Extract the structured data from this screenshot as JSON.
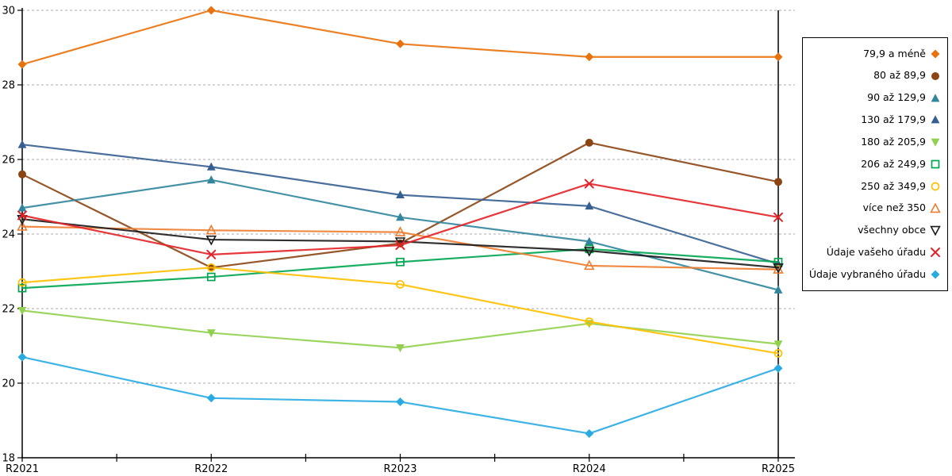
{
  "chart_data": {
    "type": "line",
    "title": "",
    "xlabel": "",
    "ylabel": "",
    "x_categories": [
      "R2021",
      "R2022",
      "R2023",
      "R2024",
      "R2025"
    ],
    "ylim": [
      18,
      30
    ],
    "yticks": [
      18,
      20,
      22,
      24,
      26,
      28,
      30
    ],
    "grid": "horizontal-dashed",
    "legend_position": "right-outside",
    "series": [
      {
        "name": "79,9 a méně",
        "marker": "diamond-filled",
        "color": "#E8730E",
        "values": [
          28.55,
          30.0,
          29.1,
          28.75,
          28.75
        ]
      },
      {
        "name": "80 až 89,9",
        "marker": "circle-filled",
        "color": "#8B4513",
        "values": [
          25.6,
          23.1,
          23.75,
          26.45,
          25.4
        ]
      },
      {
        "name": "90 až 129,9",
        "marker": "triangle-up-filled",
        "color": "#31859C",
        "values": [
          24.7,
          25.45,
          24.45,
          23.8,
          22.5
        ]
      },
      {
        "name": "130 až 179,9",
        "marker": "triangle-up-filled",
        "color": "#365F91",
        "values": [
          26.4,
          25.8,
          25.05,
          24.75,
          23.2
        ]
      },
      {
        "name": "180 až 205,9",
        "marker": "triangle-down-filled",
        "color": "#92D050",
        "values": [
          21.95,
          21.35,
          20.95,
          21.6,
          21.05
        ]
      },
      {
        "name": "206 až 249,9",
        "marker": "square-open",
        "color": "#00A550",
        "values": [
          22.55,
          22.85,
          23.25,
          23.6,
          23.25
        ]
      },
      {
        "name": "250 až 349,9",
        "marker": "circle-open",
        "color": "#FFC000",
        "values": [
          22.7,
          23.1,
          22.65,
          21.65,
          20.8
        ]
      },
      {
        "name": "více než 350",
        "marker": "triangle-up-open",
        "color": "#ED7D31",
        "values": [
          24.2,
          24.1,
          24.05,
          23.15,
          23.05
        ]
      },
      {
        "name": "všechny obce",
        "marker": "triangle-down-open",
        "color": "#1A1A1A",
        "values": [
          24.4,
          23.85,
          23.8,
          23.55,
          23.1
        ]
      },
      {
        "name": "Údaje vašeho úřadu",
        "marker": "x",
        "color": "#E32227",
        "values": [
          24.5,
          23.45,
          23.7,
          25.35,
          24.45
        ]
      },
      {
        "name": "Údaje vybraného úřadu",
        "marker": "diamond-filled",
        "color": "#29ABE2",
        "values": [
          20.7,
          19.6,
          19.5,
          18.65,
          20.4
        ]
      }
    ],
    "axis_color": "#000000",
    "gridline_color": "#AAAAAA"
  }
}
